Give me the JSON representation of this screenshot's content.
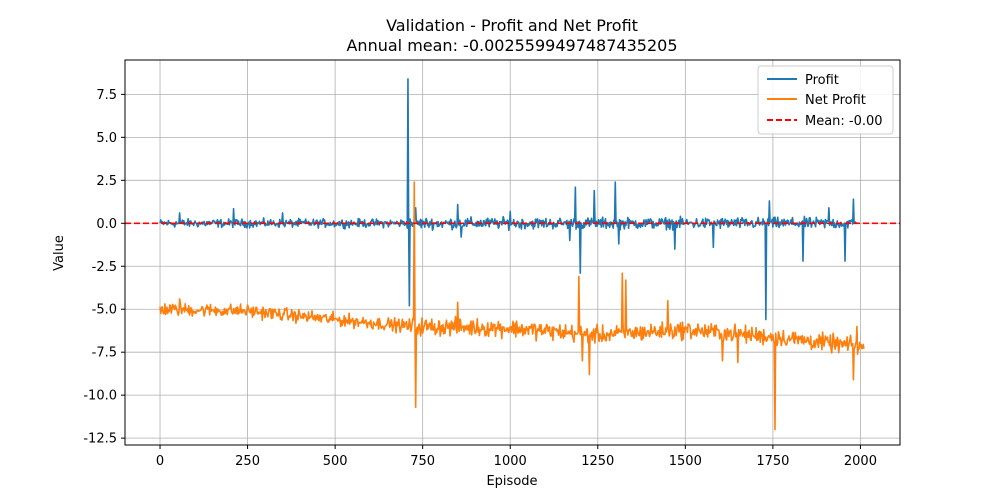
{
  "chart_data": {
    "type": "line",
    "title": "Validation - Profit and Net Profit",
    "subtitle": "Annual mean: -0.0025599497487435205",
    "xlabel": "Episode",
    "ylabel": "Value",
    "xlim": [
      -100,
      2113
    ],
    "ylim": [
      -12.9,
      9.5
    ],
    "xticks": [
      0,
      250,
      500,
      750,
      1000,
      1250,
      1500,
      1750,
      2000
    ],
    "yticks": [
      -12.5,
      -10.0,
      -7.5,
      -5.0,
      -2.5,
      0.0,
      2.5,
      5.0,
      7.5
    ],
    "grid": true,
    "legend_position": "top-right",
    "mean_line": {
      "value": -0.00256,
      "label": "Mean: -0.00",
      "color": "#ff0000",
      "style": "dashed"
    },
    "series": [
      {
        "name": "Profit",
        "color": "#1f77b4",
        "x_start": 0,
        "x_end": 1990,
        "baseline": 0.0,
        "noise_amplitude": 0.35,
        "spikes": [
          {
            "x": 55,
            "y": 0.6
          },
          {
            "x": 210,
            "y": 0.85
          },
          {
            "x": 350,
            "y": 0.6
          },
          {
            "x": 707,
            "y": 8.4
          },
          {
            "x": 712,
            "y": -4.8
          },
          {
            "x": 730,
            "y": 0.9
          },
          {
            "x": 850,
            "y": 1.1
          },
          {
            "x": 860,
            "y": -0.8
          },
          {
            "x": 1000,
            "y": 0.7
          },
          {
            "x": 1170,
            "y": -1.0
          },
          {
            "x": 1185,
            "y": 2.1
          },
          {
            "x": 1200,
            "y": -2.9
          },
          {
            "x": 1240,
            "y": 1.9
          },
          {
            "x": 1300,
            "y": 2.4
          },
          {
            "x": 1310,
            "y": -1.2
          },
          {
            "x": 1470,
            "y": -1.5
          },
          {
            "x": 1580,
            "y": -1.4
          },
          {
            "x": 1730,
            "y": -5.6
          },
          {
            "x": 1740,
            "y": 1.3
          },
          {
            "x": 1835,
            "y": -2.2
          },
          {
            "x": 1910,
            "y": 0.9
          },
          {
            "x": 1955,
            "y": -2.2
          },
          {
            "x": 1980,
            "y": 1.4
          }
        ]
      },
      {
        "name": "Net Profit",
        "color": "#ff7f0e",
        "x_start": 0,
        "x_end": 2010,
        "trend": [
          [
            0,
            -5.0
          ],
          [
            250,
            -5.1
          ],
          [
            500,
            -5.6
          ],
          [
            720,
            -6.0
          ],
          [
            1000,
            -6.1
          ],
          [
            1250,
            -6.5
          ],
          [
            1500,
            -6.2
          ],
          [
            1750,
            -6.6
          ],
          [
            2010,
            -7.2
          ]
        ],
        "noise_amplitude": 0.55,
        "spikes": [
          {
            "x": 55,
            "y": -4.4
          },
          {
            "x": 725,
            "y": 2.4
          },
          {
            "x": 730,
            "y": -10.7
          },
          {
            "x": 850,
            "y": -4.6
          },
          {
            "x": 1195,
            "y": -3.1
          },
          {
            "x": 1205,
            "y": -8.0
          },
          {
            "x": 1225,
            "y": -8.8
          },
          {
            "x": 1320,
            "y": -2.9
          },
          {
            "x": 1330,
            "y": -3.3
          },
          {
            "x": 1450,
            "y": -4.5
          },
          {
            "x": 1605,
            "y": -8.0
          },
          {
            "x": 1650,
            "y": -8.1
          },
          {
            "x": 1755,
            "y": -12.0
          },
          {
            "x": 1980,
            "y": -9.1
          },
          {
            "x": 1990,
            "y": -6.0
          }
        ]
      }
    ]
  }
}
